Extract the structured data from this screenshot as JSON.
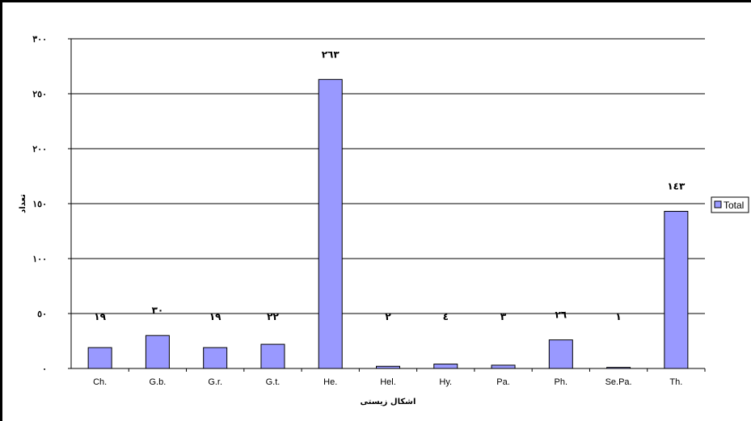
{
  "chart_data": {
    "type": "bar",
    "categories": [
      "Ch.",
      "G.b.",
      "G.r.",
      "G.t.",
      "He.",
      "Hel.",
      "Hy.",
      "Pa.",
      "Ph.",
      "Se.Pa.",
      "Th."
    ],
    "series": [
      {
        "name": "Total",
        "values": [
          19,
          30,
          19,
          22,
          263,
          2,
          4,
          3,
          26,
          1,
          143
        ]
      }
    ],
    "data_labels": [
      "١٩",
      "٣٠",
      "١٩",
      "٢٢",
      "٢٦٣",
      "٢",
      "٤",
      "٣",
      "٢٦",
      "١",
      "١٤٣"
    ],
    "y_tick_values": [
      0,
      50,
      100,
      150,
      200,
      250,
      300
    ],
    "y_tick_labels": [
      "٠",
      "٥٠",
      "١٠٠",
      "١٥٠",
      "٢٠٠",
      "٢٥٠",
      "٣٠٠"
    ],
    "ylim": [
      0,
      300
    ],
    "xlabel": "اشکال زیستی",
    "ylabel": "تعداد",
    "grid": true,
    "legend": "right",
    "colors": {
      "bar": "#9999ff",
      "bar_stroke": "#000000",
      "grid": "#000000"
    }
  }
}
